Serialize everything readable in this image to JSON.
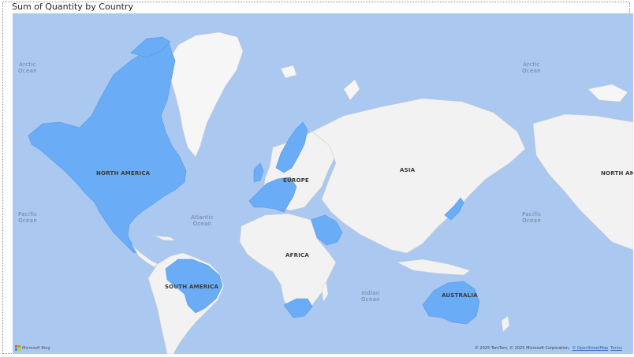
{
  "visual": {
    "title": "Sum of Quantity by Country"
  },
  "map": {
    "highlight_color": "#6aacf5",
    "land_color": "#f2f2f2",
    "water_color": "#aac8f0",
    "highlighted_countries": [
      "United States",
      "Canada",
      "Mexico",
      "Brazil",
      "France",
      "Spain",
      "Germany",
      "United Kingdom",
      "Italy",
      "Norway",
      "Sweden",
      "Finland",
      "Saudi Arabia",
      "Japan",
      "South Africa",
      "Australia"
    ],
    "ocean_labels": {
      "arctic_left": [
        "Arctic",
        "Ocean"
      ],
      "arctic_right": [
        "Arctic",
        "Ocean"
      ],
      "pacific_left": [
        "Pacific",
        "Ocean"
      ],
      "atlantic": [
        "Atlantic",
        "Ocean"
      ],
      "indian": [
        "Indian",
        "Ocean"
      ],
      "pacific_right": [
        "Pacific",
        "Ocean"
      ]
    },
    "continent_labels": {
      "north_america": "NORTH AMERICA",
      "europe": "EUROPE",
      "asia": "ASIA",
      "africa": "AFRICA",
      "south_america": "SOUTH AMERICA",
      "australia": "AUSTRALIA",
      "north_america_repeat": "NORTH AME"
    },
    "logo_text": "Microsoft Bing",
    "attribution": {
      "text": "© 2025 TomTom, © 2025 Microsoft Corporation,",
      "osm_link": "© OpenStreetMap",
      "terms_link": "Terms"
    }
  }
}
